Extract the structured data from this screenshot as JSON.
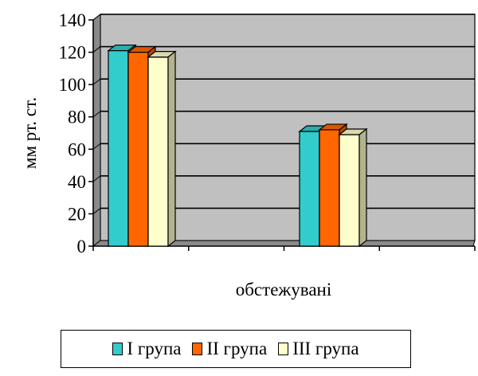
{
  "colors": {
    "plot_background": "#c0c0c0",
    "plot_top_face": "#a9a9a9",
    "plot_side_face": "#8a8a8a",
    "series": [
      "#33cccc",
      "#ff6600",
      "#ffffcc"
    ]
  },
  "chart_data": {
    "type": "bar",
    "style": "3d-clustered-column",
    "categories": [
      "",
      ""
    ],
    "series": [
      {
        "name": "I група",
        "values": [
          121,
          71
        ]
      },
      {
        "name": "II група",
        "values": [
          120,
          72
        ]
      },
      {
        "name": "III група",
        "values": [
          117,
          69
        ]
      }
    ],
    "title": "",
    "xlabel": "обстежувані",
    "ylabel": "мм рт. ст.",
    "ylim": [
      0,
      140
    ],
    "yticks": [
      0,
      20,
      40,
      60,
      80,
      100,
      120,
      140
    ],
    "grid": true,
    "legend_position": "bottom"
  }
}
